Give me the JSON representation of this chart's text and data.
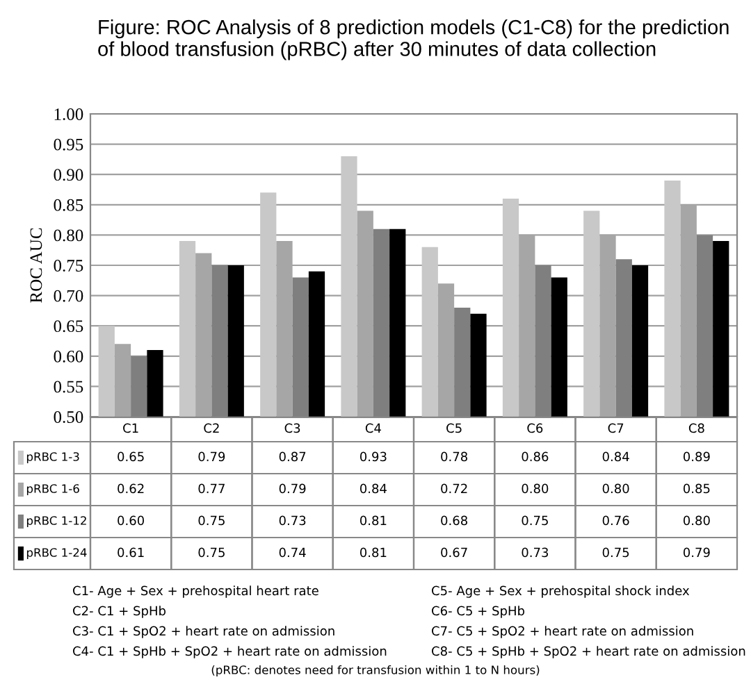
{
  "chart_data": {
    "type": "bar",
    "title": "Figure: ROC Analysis of 8 prediction models (C1-C8) for the prediction of blood transfusion (pRBC) after 30 minutes of data collection",
    "ylabel": "ROC AUC",
    "categories": [
      "C1",
      "C2",
      "C3",
      "C4",
      "C5",
      "C6",
      "C7",
      "C8"
    ],
    "series": [
      {
        "name": "pRBC 1-3",
        "color": "#c8c8c8",
        "values": [
          0.65,
          0.79,
          0.87,
          0.93,
          0.78,
          0.86,
          0.84,
          0.89
        ],
        "value_labels": [
          "0.65",
          "0.79",
          "0.87",
          "0.93",
          "0.78",
          "0.86",
          "0.84",
          "0.89"
        ]
      },
      {
        "name": "pRBC 1-6",
        "color": "#a6a6a6",
        "values": [
          0.62,
          0.77,
          0.79,
          0.84,
          0.72,
          0.8,
          0.8,
          0.85
        ],
        "value_labels": [
          "0.62",
          "0.77",
          "0.79",
          "0.84",
          "0.72",
          "0.80",
          "0.80",
          "0.85"
        ]
      },
      {
        "name": "pRBC 1-12",
        "color": "#7f7f7f",
        "values": [
          0.6,
          0.75,
          0.73,
          0.81,
          0.68,
          0.75,
          0.76,
          0.8
        ],
        "value_labels": [
          "0.60",
          "0.75",
          "0.73",
          "0.81",
          "0.68",
          "0.75",
          "0.76",
          "0.80"
        ]
      },
      {
        "name": "pRBC 1-24",
        "color": "#000000",
        "values": [
          0.61,
          0.75,
          0.74,
          0.81,
          0.67,
          0.73,
          0.75,
          0.79
        ],
        "value_labels": [
          "0.61",
          "0.75",
          "0.74",
          "0.81",
          "0.67",
          "0.73",
          "0.75",
          "0.79"
        ]
      }
    ],
    "ylim": [
      0.5,
      1.0
    ],
    "yticks": [
      {
        "value": 0.5,
        "label": "0.50"
      },
      {
        "value": 0.55,
        "label": "0.55"
      },
      {
        "value": 0.6,
        "label": "0.60"
      },
      {
        "value": 0.65,
        "label": "0.65"
      },
      {
        "value": 0.7,
        "label": "0.70"
      },
      {
        "value": 0.75,
        "label": "0.75"
      },
      {
        "value": 0.8,
        "label": "0.80"
      },
      {
        "value": 0.85,
        "label": "0.85"
      },
      {
        "value": 0.9,
        "label": "0.90"
      },
      {
        "value": 0.95,
        "label": "0.95"
      },
      {
        "value": 1.0,
        "label": "1.00"
      }
    ],
    "grid": "y",
    "legend": "bottom",
    "annotations": [
      "C1- Age + Sex + prehospital heart rate",
      "C2- C1 + SpHb",
      "C3- C1 + SpO2 + heart rate on admission",
      "C4- C1 + SpHb + SpO2 + heart rate on admission",
      "C5- Age + Sex + prehospital shock index",
      "C6- C5 + SpHb",
      "C7- C5 + SpO2 + heart rate on admission",
      "C8- C5 + SpHb + SpO2 + heart rate on admission",
      "(pRBC: denotes need for transfusion within 1 to N hours)"
    ]
  }
}
